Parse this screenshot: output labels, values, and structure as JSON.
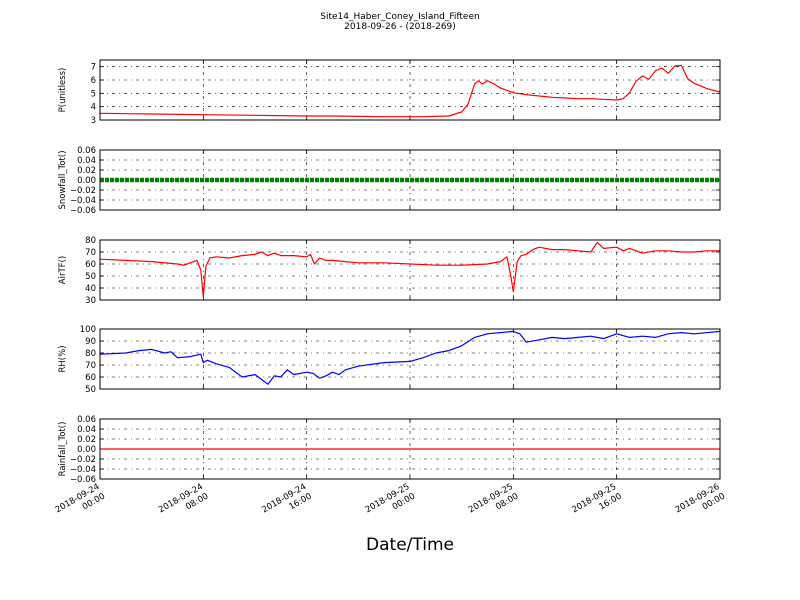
{
  "figure": {
    "title_line1": "Site14_Haber_Coney_Island_Fifteen",
    "title_line2": "2018-09-26 - (2018-269)",
    "xlabel": "Date/Time",
    "x_range": [
      "2018-09-24 00:00",
      "2018-09-26 00:00"
    ],
    "x_ticks": [
      {
        "line1": "2018-09-24",
        "line2": "00:00"
      },
      {
        "line1": "2018-09-24",
        "line2": "08:00"
      },
      {
        "line1": "2018-09-24",
        "line2": "16:00"
      },
      {
        "line1": "2018-09-25",
        "line2": "00:00"
      },
      {
        "line1": "2018-09-25",
        "line2": "08:00"
      },
      {
        "line1": "2018-09-25",
        "line2": "16:00"
      },
      {
        "line1": "2018-09-26",
        "line2": "00:00"
      }
    ]
  },
  "chart_data": [
    {
      "type": "line",
      "ylabel": "P(unitless)",
      "ylim": [
        3,
        7.5
      ],
      "yticks": [
        3,
        4,
        5,
        6,
        7
      ],
      "ytick_labels": [
        "3",
        "4",
        "5",
        "6",
        "7"
      ],
      "grid": true,
      "color": "#ff0000",
      "x_hours": [
        0,
        4,
        8,
        12,
        16,
        18,
        22,
        25,
        27,
        28,
        28.5,
        29,
        29.3,
        29.6,
        30,
        30.5,
        31,
        32,
        33,
        34,
        35,
        36,
        37,
        38,
        39,
        40,
        40.5,
        41,
        41.5,
        42,
        42.5,
        43,
        43.5,
        44,
        44.5,
        45,
        45.5,
        46,
        47,
        48
      ],
      "values": [
        3.5,
        3.45,
        3.4,
        3.35,
        3.3,
        3.3,
        3.25,
        3.25,
        3.3,
        3.6,
        4.2,
        5.7,
        5.95,
        5.7,
        5.95,
        5.7,
        5.4,
        5.05,
        4.9,
        4.8,
        4.7,
        4.65,
        4.6,
        4.6,
        4.55,
        4.5,
        4.6,
        5.05,
        5.9,
        6.3,
        6.05,
        6.7,
        6.9,
        6.5,
        7.05,
        7.1,
        6.1,
        5.75,
        5.35,
        5.1
      ]
    },
    {
      "type": "scatter",
      "ylabel": "Snowfall_Tot()",
      "ylim": [
        -0.06,
        0.06
      ],
      "yticks": [
        -0.06,
        -0.04,
        -0.02,
        0.0,
        0.02,
        0.04,
        0.06
      ],
      "ytick_labels": [
        "−0.06",
        "−0.04",
        "−0.02",
        "0.00",
        "0.02",
        "0.04",
        "0.06"
      ],
      "grid": true,
      "color": "#008000",
      "x_hours": [
        0,
        48
      ],
      "values": [
        0,
        0
      ]
    },
    {
      "type": "line",
      "ylabel": "AirTF()",
      "ylim": [
        30,
        80
      ],
      "yticks": [
        30,
        40,
        50,
        60,
        70,
        80
      ],
      "ytick_labels": [
        "30",
        "40",
        "50",
        "60",
        "70",
        "80"
      ],
      "grid": true,
      "color": "#ff0000",
      "x_hours": [
        0,
        2,
        4,
        6,
        6.5,
        7,
        7.5,
        7.8,
        8,
        8.2,
        8.5,
        9,
        10,
        11,
        12,
        12.5,
        13,
        13.5,
        14,
        15,
        16,
        16.3,
        16.6,
        17,
        17.5,
        18,
        19,
        20,
        22,
        24,
        26,
        28,
        30,
        31,
        31.5,
        31.8,
        32,
        32.3,
        32.6,
        33,
        33.5,
        34,
        35,
        36,
        37,
        38,
        38.5,
        39,
        40,
        40.5,
        41,
        42,
        43,
        44,
        45,
        46,
        47,
        48
      ],
      "values": [
        64,
        63,
        62,
        60,
        59,
        61,
        63,
        55,
        33,
        58,
        65,
        66,
        65,
        67,
        68,
        70,
        67,
        69,
        67,
        67,
        66,
        68,
        60,
        65,
        63,
        63,
        62,
        61,
        61,
        60,
        59,
        59,
        60,
        62,
        66,
        50,
        37,
        62,
        67,
        68,
        72,
        74,
        72,
        72,
        71,
        70,
        78,
        73,
        74,
        71,
        73,
        69,
        71,
        71,
        70,
        70,
        71,
        71
      ]
    },
    {
      "type": "line",
      "ylabel": "RH(%)",
      "ylim": [
        50,
        100
      ],
      "yticks": [
        50,
        60,
        70,
        80,
        90,
        100
      ],
      "ytick_labels": [
        "50",
        "60",
        "70",
        "80",
        "90",
        "100"
      ],
      "grid": true,
      "color": "#0000ff",
      "x_hours": [
        0,
        2,
        3,
        4,
        5,
        5.5,
        6,
        7,
        7.8,
        8,
        8.3,
        9,
        10,
        10.5,
        11,
        12,
        12.5,
        13,
        13.5,
        14,
        14.5,
        15,
        16,
        16.5,
        17,
        17.5,
        18,
        18.5,
        19,
        20,
        22,
        24,
        25,
        26,
        27,
        28,
        29,
        30,
        31,
        32,
        32.5,
        33,
        34,
        35,
        36,
        37,
        38,
        39,
        40,
        41,
        42,
        43,
        44,
        45,
        46,
        48
      ],
      "values": [
        79,
        80,
        82,
        83,
        80,
        81,
        76,
        77,
        79,
        72,
        74,
        71,
        68,
        64,
        60,
        62,
        58,
        54,
        61,
        60,
        66,
        62,
        64,
        63,
        59,
        61,
        64,
        62,
        66,
        69,
        72,
        73,
        76,
        80,
        82,
        86,
        93,
        96,
        97,
        98,
        96,
        89,
        91,
        93,
        92,
        93,
        94,
        92,
        96,
        93,
        94,
        93,
        96,
        97,
        96,
        98
      ]
    },
    {
      "type": "line",
      "ylabel": "Rainfall_Tot()",
      "ylim": [
        -0.06,
        0.06
      ],
      "yticks": [
        -0.06,
        -0.04,
        -0.02,
        0.0,
        0.02,
        0.04,
        0.06
      ],
      "ytick_labels": [
        "−0.06",
        "−0.04",
        "−0.02",
        "0.00",
        "0.02",
        "0.04",
        "0.06"
      ],
      "grid": true,
      "color": "#ff0000",
      "x_hours": [
        0,
        48
      ],
      "values": [
        0,
        0
      ]
    }
  ]
}
